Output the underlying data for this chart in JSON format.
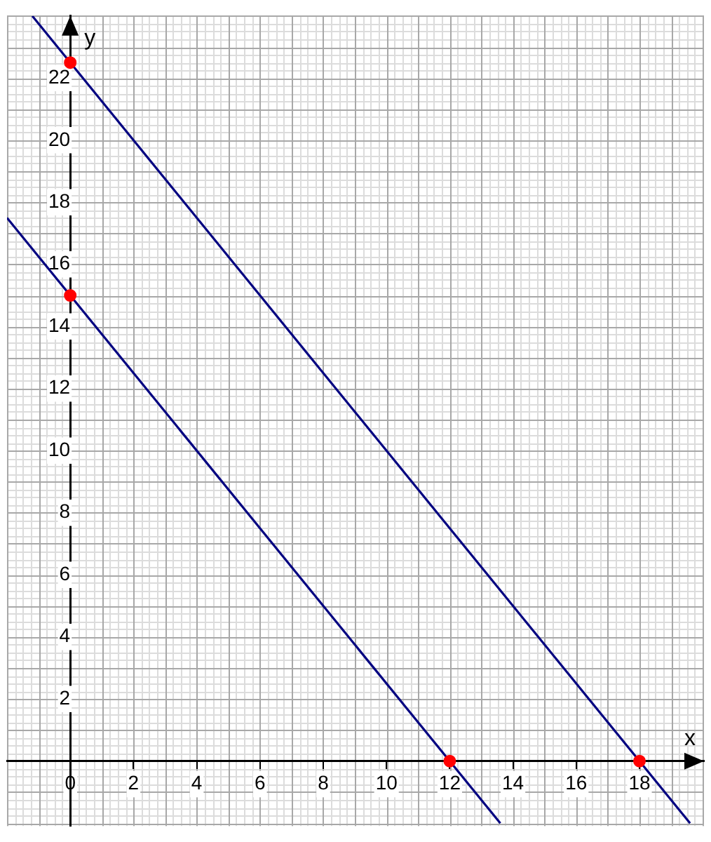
{
  "chart_data": {
    "type": "line",
    "xlabel": "x",
    "ylabel": "y",
    "xlim": [
      -2,
      20.04
    ],
    "ylim": [
      -2.09,
      24
    ],
    "xticks": [
      {
        "value": 0,
        "label": "0"
      },
      2,
      4,
      6,
      8,
      10,
      12,
      14,
      16,
      18
    ],
    "yticks": [
      2,
      4,
      6,
      8,
      10,
      12,
      14,
      16,
      18,
      20,
      22
    ],
    "grid": true,
    "legend": false,
    "marker": "none",
    "line_style": "solid",
    "series": [
      {
        "color": "#000080",
        "x": [
          -2,
          13.6
        ],
        "values": [
          17.5,
          -2
        ]
      },
      {
        "color": "#000080",
        "x": [
          -1.2,
          19.6
        ],
        "values": [
          24,
          -2
        ]
      },
      {
        "type": "scatter",
        "color": "#ff0000",
        "marker": "circle",
        "x": [
          0,
          12,
          0,
          18
        ],
        "values": [
          15,
          0,
          22.5,
          0
        ]
      }
    ]
  }
}
